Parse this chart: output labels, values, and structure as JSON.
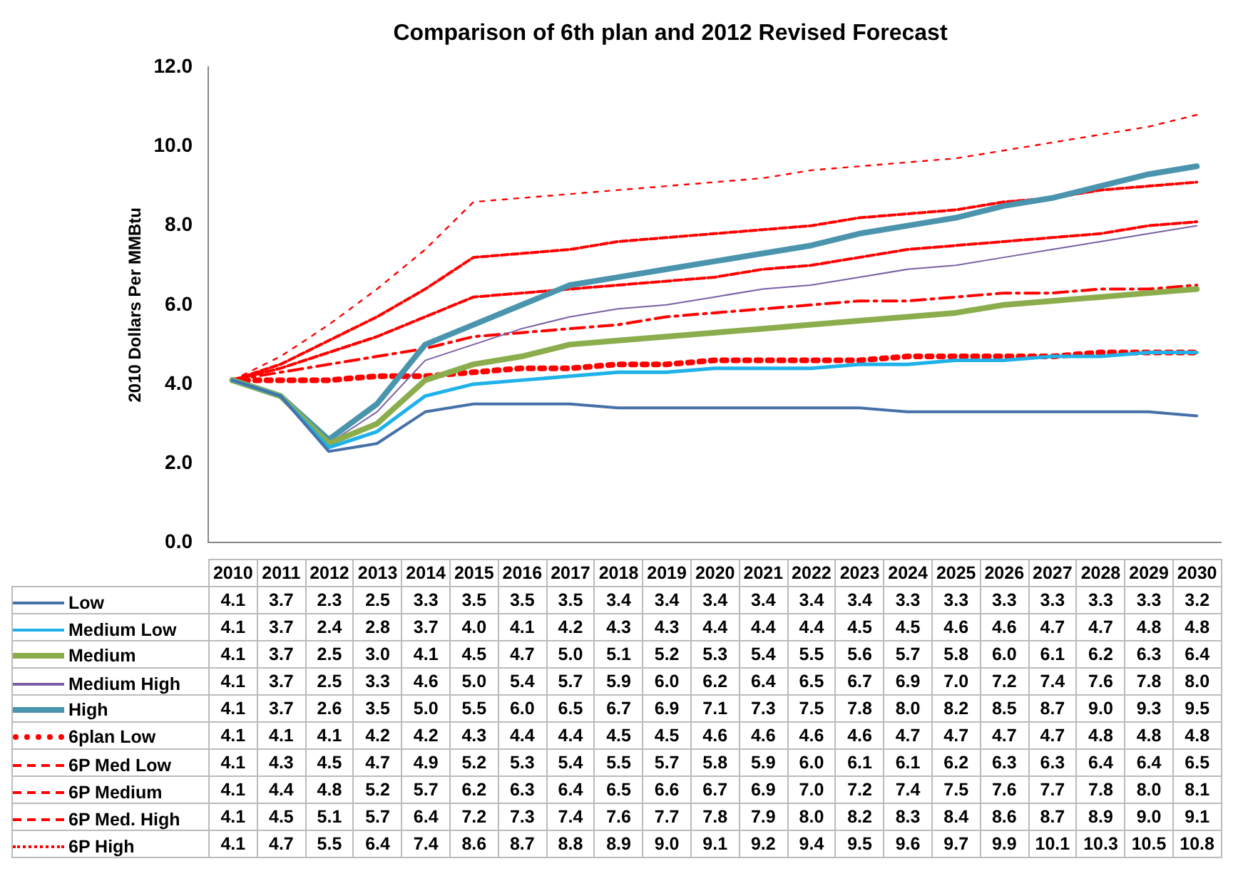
{
  "chart_data": {
    "type": "line",
    "title": "Comparison of 6th plan and 2012 Revised Forecast",
    "ylabel": "2010 Dollars Per MMBtu",
    "categories": [
      "2010",
      "2011",
      "2012",
      "2013",
      "2014",
      "2015",
      "2016",
      "2017",
      "2018",
      "2019",
      "2020",
      "2021",
      "2022",
      "2023",
      "2024",
      "2025",
      "2026",
      "2027",
      "2028",
      "2029",
      "2030"
    ],
    "ylim": [
      0,
      12
    ],
    "yticks": [
      {
        "value": 0,
        "label": "0.0"
      },
      {
        "value": 2,
        "label": "2.0"
      },
      {
        "value": 4,
        "label": "4.0"
      },
      {
        "value": 6,
        "label": "6.0"
      },
      {
        "value": 8,
        "label": "8.0"
      },
      {
        "value": 10,
        "label": "10.0"
      },
      {
        "value": 12,
        "label": "12.0"
      }
    ],
    "grid": false,
    "legend": "bottom",
    "tick_labels": "y",
    "marker": "none",
    "series": [
      {
        "name": "Low",
        "color": "#4670a8",
        "line_style": "solid",
        "values": [
          4.1,
          3.7,
          2.3,
          2.5,
          3.3,
          3.5,
          3.5,
          3.5,
          3.4,
          3.4,
          3.4,
          3.4,
          3.4,
          3.4,
          3.3,
          3.3,
          3.3,
          3.3,
          3.3,
          3.3,
          3.2
        ],
        "value_labels": [
          "4.1",
          "3.7",
          "2.3",
          "2.5",
          "3.3",
          "3.5",
          "3.5",
          "3.5",
          "3.4",
          "3.4",
          "3.4",
          "3.4",
          "3.4",
          "3.4",
          "3.3",
          "3.3",
          "3.3",
          "3.3",
          "3.3",
          "3.3",
          "3.2"
        ]
      },
      {
        "name": "Medium Low",
        "color": "#1eb1ea",
        "line_style": "solid",
        "values": [
          4.1,
          3.7,
          2.4,
          2.8,
          3.7,
          4.0,
          4.1,
          4.2,
          4.3,
          4.3,
          4.4,
          4.4,
          4.4,
          4.5,
          4.5,
          4.6,
          4.6,
          4.7,
          4.7,
          4.8,
          4.8
        ],
        "value_labels": [
          "4.1",
          "3.7",
          "2.4",
          "2.8",
          "3.7",
          "4.0",
          "4.1",
          "4.2",
          "4.3",
          "4.3",
          "4.4",
          "4.4",
          "4.4",
          "4.5",
          "4.5",
          "4.6",
          "4.6",
          "4.7",
          "4.7",
          "4.8",
          "4.8"
        ]
      },
      {
        "name": "Medium",
        "color": "#8bad4c",
        "line_style": "solid",
        "values": [
          4.1,
          3.7,
          2.5,
          3.0,
          4.1,
          4.5,
          4.7,
          5.0,
          5.1,
          5.2,
          5.3,
          5.4,
          5.5,
          5.6,
          5.7,
          5.8,
          6.0,
          6.1,
          6.2,
          6.3,
          6.4
        ],
        "value_labels": [
          "4.1",
          "3.7",
          "2.5",
          "3.0",
          "4.1",
          "4.5",
          "4.7",
          "5.0",
          "5.1",
          "5.2",
          "5.3",
          "5.4",
          "5.5",
          "5.6",
          "5.7",
          "5.8",
          "6.0",
          "6.1",
          "6.2",
          "6.3",
          "6.4"
        ]
      },
      {
        "name": "Medium High",
        "color": "#7a5fa3",
        "line_style": "solid",
        "values": [
          4.1,
          3.7,
          2.5,
          3.3,
          4.6,
          5.0,
          5.4,
          5.7,
          5.9,
          6.0,
          6.2,
          6.4,
          6.5,
          6.7,
          6.9,
          7.0,
          7.2,
          7.4,
          7.6,
          7.8,
          8.0
        ],
        "value_labels": [
          "4.1",
          "3.7",
          "2.5",
          "3.3",
          "4.6",
          "5.0",
          "5.4",
          "5.7",
          "5.9",
          "6.0",
          "6.2",
          "6.4",
          "6.5",
          "6.7",
          "6.9",
          "7.0",
          "7.2",
          "7.4",
          "7.6",
          "7.8",
          "8.0"
        ]
      },
      {
        "name": "High",
        "color": "#4a94ad",
        "line_style": "solid",
        "values": [
          4.1,
          3.7,
          2.6,
          3.5,
          5.0,
          5.5,
          6.0,
          6.5,
          6.7,
          6.9,
          7.1,
          7.3,
          7.5,
          7.8,
          8.0,
          8.2,
          8.5,
          8.7,
          9.0,
          9.3,
          9.5
        ],
        "value_labels": [
          "4.1",
          "3.7",
          "2.6",
          "3.5",
          "5.0",
          "5.5",
          "6.0",
          "6.5",
          "6.7",
          "6.9",
          "7.1",
          "7.3",
          "7.5",
          "7.8",
          "8.0",
          "8.2",
          "8.5",
          "8.7",
          "9.0",
          "9.3",
          "9.5"
        ]
      },
      {
        "name": "6plan Low",
        "color": "#ff0000",
        "line_style": "dotted",
        "values": [
          4.1,
          4.1,
          4.1,
          4.2,
          4.2,
          4.3,
          4.4,
          4.4,
          4.5,
          4.5,
          4.6,
          4.6,
          4.6,
          4.6,
          4.7,
          4.7,
          4.7,
          4.7,
          4.8,
          4.8,
          4.8
        ],
        "value_labels": [
          "4.1",
          "4.1",
          "4.1",
          "4.2",
          "4.2",
          "4.3",
          "4.4",
          "4.4",
          "4.5",
          "4.5",
          "4.6",
          "4.6",
          "4.6",
          "4.6",
          "4.7",
          "4.7",
          "4.7",
          "4.7",
          "4.8",
          "4.8",
          "4.8"
        ]
      },
      {
        "name": "6P Med Low",
        "color": "#ff0000",
        "line_style": "dashed",
        "values": [
          4.1,
          4.3,
          4.5,
          4.7,
          4.9,
          5.2,
          5.3,
          5.4,
          5.5,
          5.7,
          5.8,
          5.9,
          6.0,
          6.1,
          6.1,
          6.2,
          6.3,
          6.3,
          6.4,
          6.4,
          6.5
        ],
        "value_labels": [
          "4.1",
          "4.3",
          "4.5",
          "4.7",
          "4.9",
          "5.2",
          "5.3",
          "5.4",
          "5.5",
          "5.7",
          "5.8",
          "5.9",
          "6.0",
          "6.1",
          "6.1",
          "6.2",
          "6.3",
          "6.3",
          "6.4",
          "6.4",
          "6.5"
        ]
      },
      {
        "name": "6P Medium",
        "color": "#ff0000",
        "line_style": "dashed",
        "values": [
          4.1,
          4.4,
          4.8,
          5.2,
          5.7,
          6.2,
          6.3,
          6.4,
          6.5,
          6.6,
          6.7,
          6.9,
          7.0,
          7.2,
          7.4,
          7.5,
          7.6,
          7.7,
          7.8,
          8.0,
          8.1
        ],
        "value_labels": [
          "4.1",
          "4.4",
          "4.8",
          "5.2",
          "5.7",
          "6.2",
          "6.3",
          "6.4",
          "6.5",
          "6.6",
          "6.7",
          "6.9",
          "7.0",
          "7.2",
          "7.4",
          "7.5",
          "7.6",
          "7.7",
          "7.8",
          "8.0",
          "8.1"
        ]
      },
      {
        "name": "6P Med. High",
        "color": "#ff0000",
        "line_style": "dashed",
        "values": [
          4.1,
          4.5,
          5.1,
          5.7,
          6.4,
          7.2,
          7.3,
          7.4,
          7.6,
          7.7,
          7.8,
          7.9,
          8.0,
          8.2,
          8.3,
          8.4,
          8.6,
          8.7,
          8.9,
          9.0,
          9.1
        ],
        "value_labels": [
          "4.1",
          "4.5",
          "5.1",
          "5.7",
          "6.4",
          "7.2",
          "7.3",
          "7.4",
          "7.6",
          "7.7",
          "7.8",
          "7.9",
          "8.0",
          "8.2",
          "8.3",
          "8.4",
          "8.6",
          "8.7",
          "8.9",
          "9.0",
          "9.1"
        ]
      },
      {
        "name": "6P High",
        "color": "#ff0000",
        "line_style": "dotted",
        "values": [
          4.1,
          4.7,
          5.5,
          6.4,
          7.4,
          8.6,
          8.7,
          8.8,
          8.9,
          9.0,
          9.1,
          9.2,
          9.4,
          9.5,
          9.6,
          9.7,
          9.9,
          10.1,
          10.3,
          10.5,
          10.8
        ],
        "value_labels": [
          "4.1",
          "4.7",
          "5.5",
          "6.4",
          "7.4",
          "8.6",
          "8.7",
          "8.8",
          "8.9",
          "9.0",
          "9.1",
          "9.2",
          "9.4",
          "9.5",
          "9.6",
          "9.7",
          "9.9",
          "10.1",
          "10.3",
          "10.5",
          "10.8"
        ]
      }
    ]
  }
}
